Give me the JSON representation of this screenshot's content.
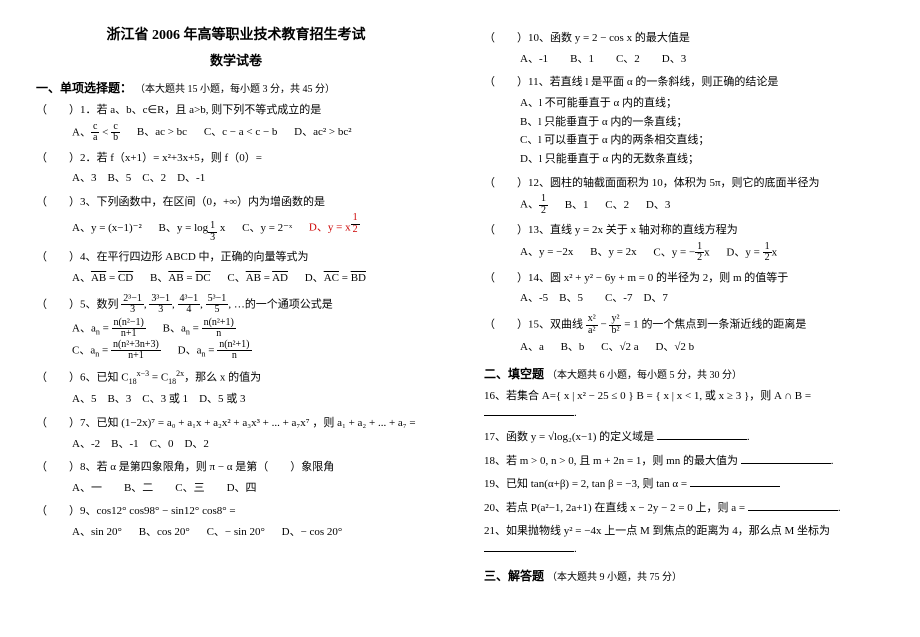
{
  "header": {
    "title": "浙江省 2006 年高等职业技术教育招生考试",
    "subtitle": "数学试卷"
  },
  "sections": {
    "s1": {
      "label": "一、单项选择题：",
      "note": "（本大题共 15 小题，每小题 3 分，共 45 分）"
    },
    "s2": {
      "label": "二、填空题",
      "note": "（本大题共 6 小题，每小题 5 分，共 30 分）"
    },
    "s3": {
      "label": "三、解答题",
      "note": "（本大题共 9 小题，共 75 分）"
    }
  },
  "q": {
    "1": {
      "stem": "（　　）1．若 a、b、c∈R，且 a>b, 则下列不等式成立的是"
    },
    "2": {
      "stem": "（　　）2．若 f（x+1）= x²+3x+5，则 f（0）=",
      "ans": "A、3　B、5　C、2　D、-1"
    },
    "3": {
      "stem": "（　　）3、下列函数中，在区间（0，+∞）内为增函数的是"
    },
    "4": {
      "stem": "（　　）4、在平行四边形 ABCD 中，正确的向量等式为"
    },
    "5": {
      "stem": "（　　）5、数列",
      "tail": "…的一个通项公式是"
    },
    "6": {
      "stem": "（　　）6、已知 C",
      "tail": "，那么 x 的值为",
      "ans": "A、5　B、3　C、3 或 1　D、5 或 3"
    },
    "7": {
      "stem": "（　　）7、已知 (1−2x)⁷ = a₀ + a₁x + a₂x² + a₃x³ + ... + a₇x⁷ ，则 a₁ + a₂ + ... + a₇ =",
      "ans": "A、-2　B、-1　C、0　D、2"
    },
    "8": {
      "stem": "（　　）8、若 α 是第四象限角，则 π − α 是第（　　）象限角",
      "ans": "A、一　　B、二　　C、三　　D、四"
    },
    "9": {
      "stem": "（　　）9、cos12° cos98° − sin12° cos8° ="
    },
    "10": {
      "stem": "（　　）10、函数 y = 2 − cos x 的最大值是",
      "ans": "A、-1　　B、1　　C、2　　D、3"
    },
    "11": {
      "stem": "（　　）11、若直线 l 是平面 α 的一条斜线，则正确的结论是",
      "oA": "A、l 不可能垂直于 α 内的直线；",
      "oB": "B、l 只能垂直于 α 内的一条直线；",
      "oC": "C、l 可以垂直于 α 内的两条相交直线；",
      "oD": "D、l 只能垂直于 α 内的无数条直线；"
    },
    "12": {
      "stem": "（　　）12、圆柱的轴截面面积为 10，体积为 5π，则它的底面半径为"
    },
    "13": {
      "stem": "（　　）13、直线 y = 2x 关于 x 轴对称的直线方程为"
    },
    "14": {
      "stem": "（　　）14、圆 x² + y² − 6y + m = 0 的半径为 2，则 m 的值等于",
      "ans": "A、-5　B、5　　C、-7　D、7"
    },
    "15": {
      "stem": "（　　）15、双曲线",
      "tail": " 的一个焦点到一条渐近线的距离是"
    },
    "16": {
      "stem": "16、若集合 A={ x | x² − 25 ≤ 0 }  B = { x | x < 1, 或 x ≥ 3 }，则 A ∩ B ="
    },
    "17": {
      "stem": "17、函数 y = √log₂(x−1) 的定义域是"
    },
    "18": {
      "stem": "18、若 m > 0, n > 0, 且 m + 2n = 1，则 mn 的最大值为"
    },
    "19": {
      "stem": "19、已知 tan(α+β) = 2, tan β = −3, 则 tan α ="
    },
    "20": {
      "stem": "20、若点 P(a²−1, 2a+1) 在直线 x − 2y − 2 = 0 上，则 a ="
    },
    "21": {
      "stem": "21、如果抛物线 y² = −4x 上一点 M 到焦点的距离为 4，那么点 M 坐标为"
    }
  },
  "opts": {
    "1": {
      "A": "A、",
      "B": "B、ac > bc",
      "C": "C、c − a < c − b",
      "D": "D、ac² > bc²"
    },
    "3": {
      "A": "A、y = (x−1)⁻²",
      "B": "B、",
      "C": "C、y = 2⁻ˣ",
      "D": "D、"
    },
    "4": {
      "A": "A、",
      "B": "B、",
      "C": "C、",
      "D": "D、"
    },
    "9": {
      "A": "A、sin 20°",
      "B": "B、cos 20°",
      "C": "C、− sin 20°",
      "D": "D、− cos 20°"
    },
    "12": {
      "A": "A、",
      "B": "B、1",
      "C": "C、2",
      "D": "D、3"
    },
    "13": {
      "A": "A、y = −2x",
      "B": "B、y = 2x",
      "C": "C、",
      "D": "D、"
    },
    "15": {
      "A": "A、a",
      "B": "B、b",
      "C": "C、√2 a",
      "D": "D、√2 b"
    }
  },
  "style": {
    "text_color": "#000000",
    "red_color": "#cc0000",
    "bg": "#ffffff",
    "base_fontsize": 11,
    "title_fontsize": 14
  }
}
